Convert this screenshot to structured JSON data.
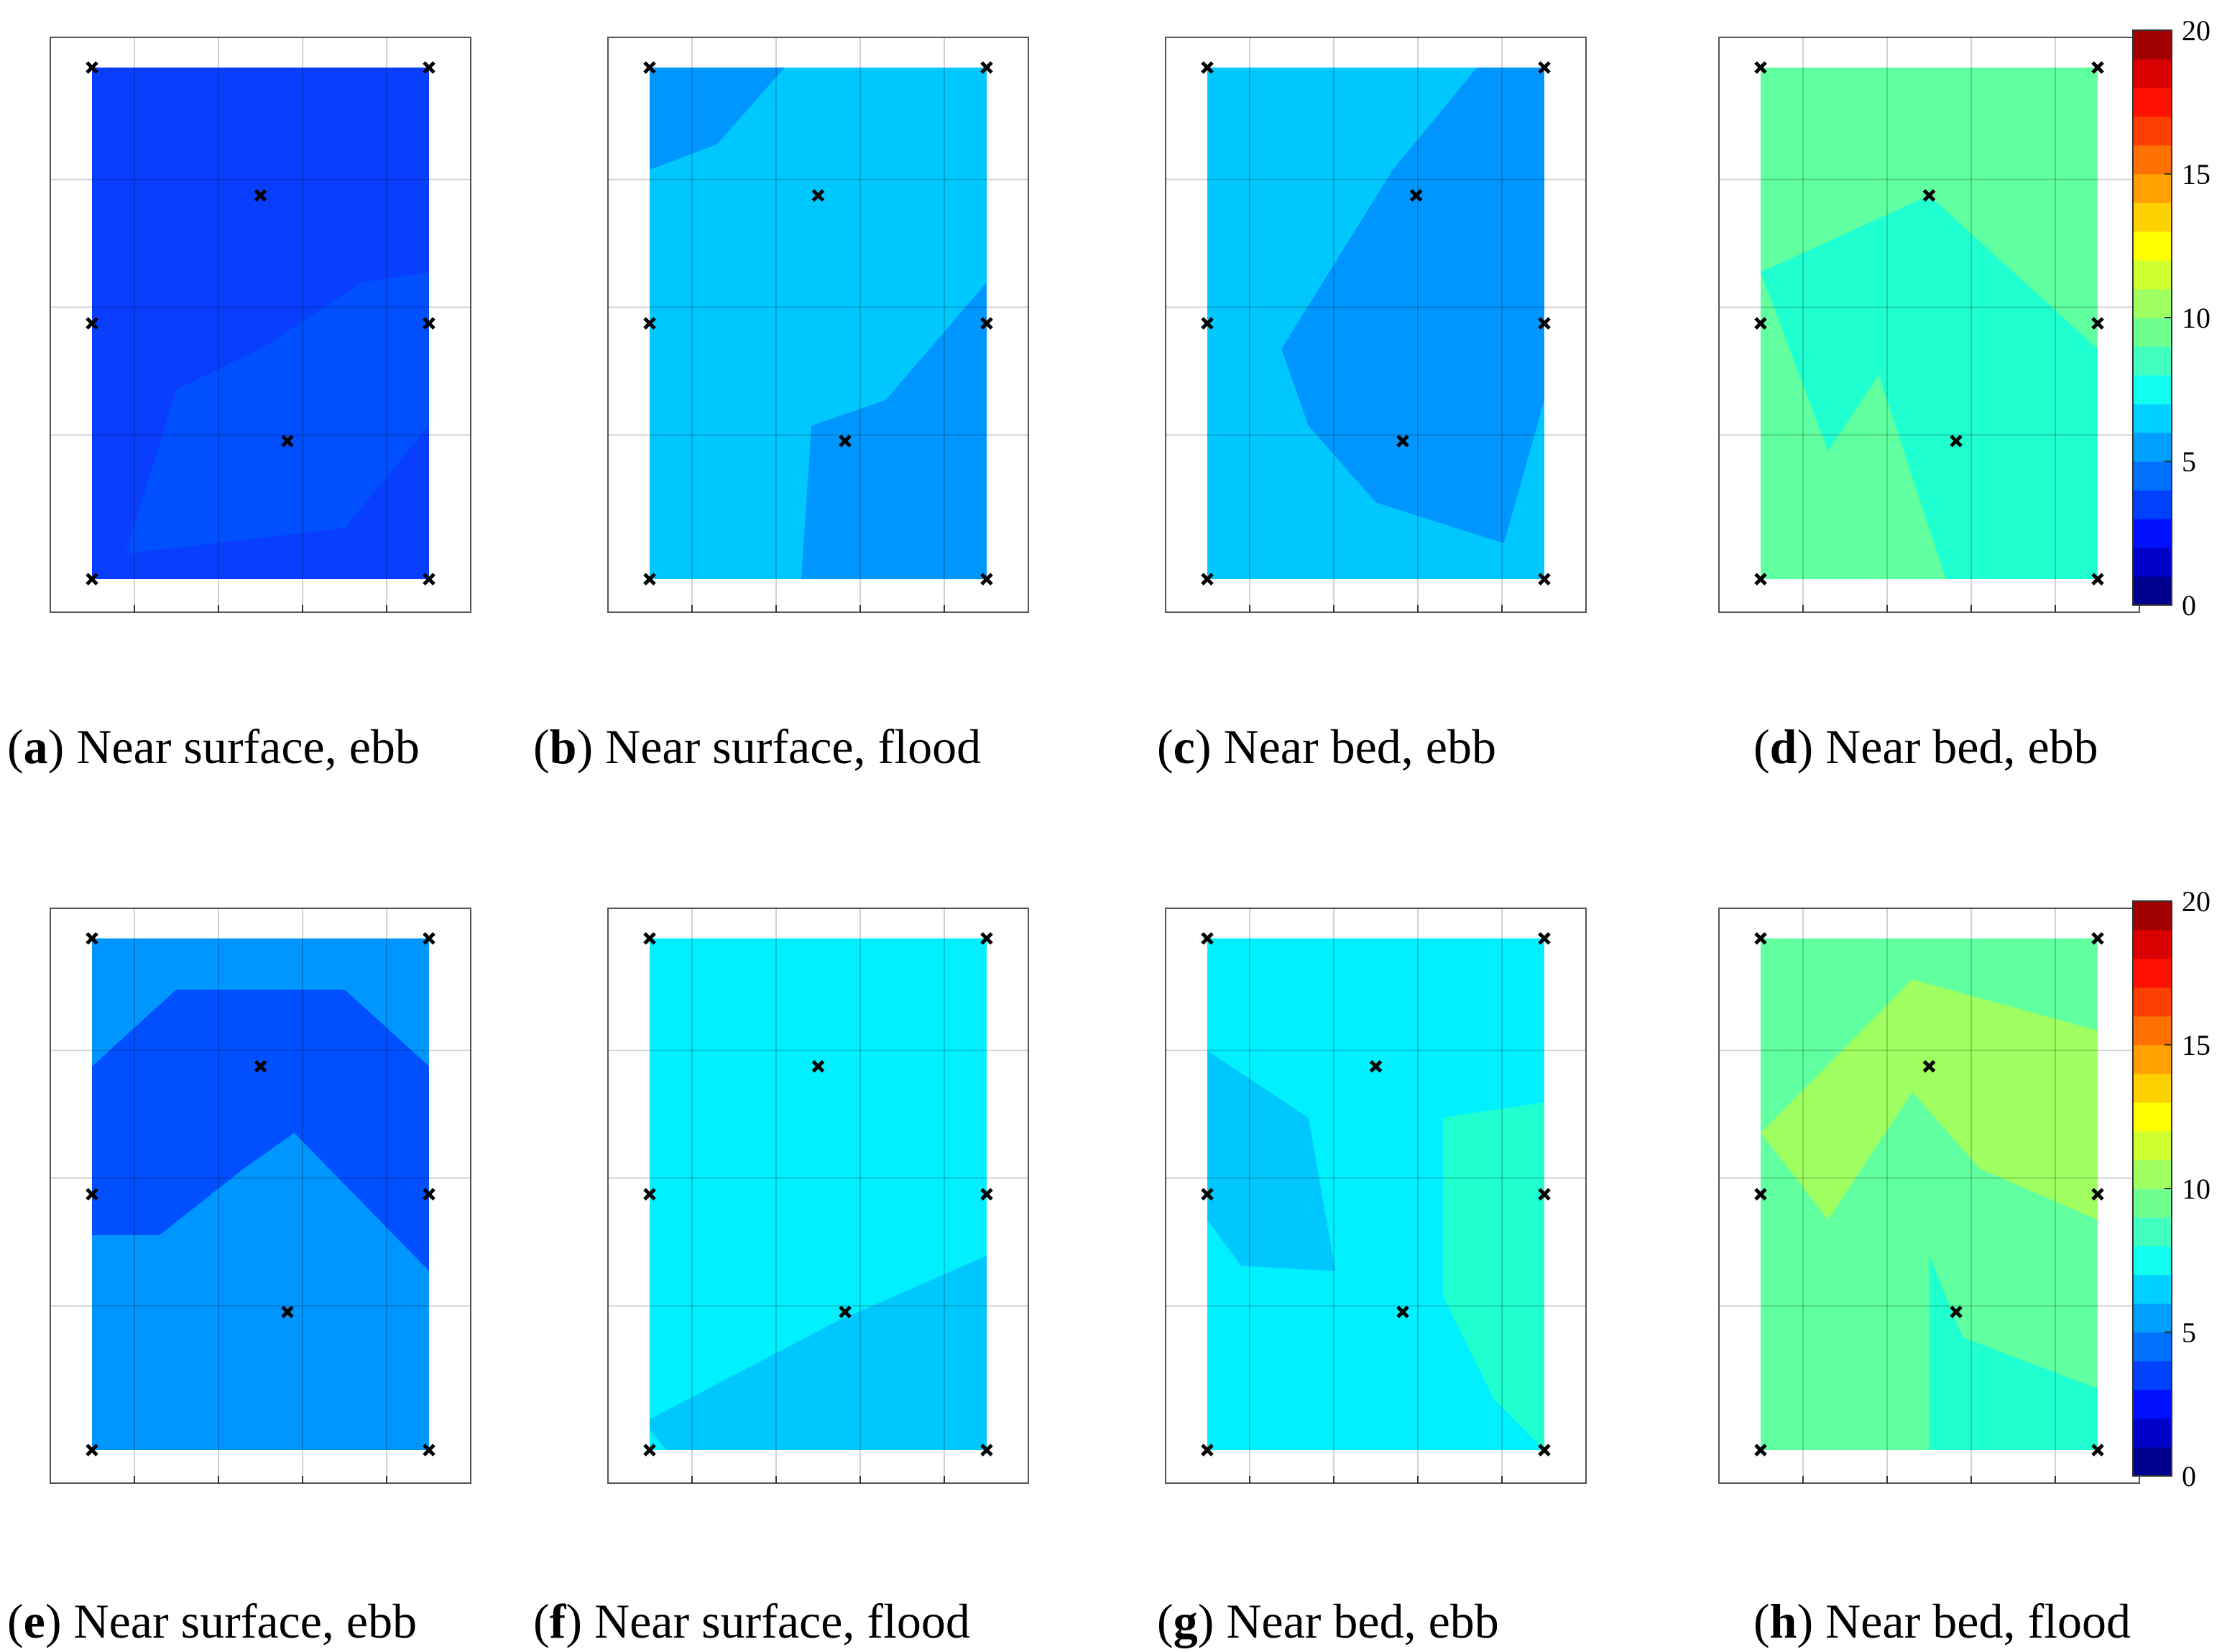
{
  "chart_data": [
    {
      "type": "heatmap",
      "letter": "a",
      "caption": "Near surface, ebb",
      "row": 0,
      "col": 0,
      "colors": [
        "#0a3eff",
        "#0050ff"
      ],
      "contour": [
        [
          0.1,
          0.05
        ],
        [
          0.75,
          0.1
        ],
        [
          1,
          0.3
        ],
        [
          1,
          0.6
        ],
        [
          0.8,
          0.58
        ],
        [
          0.5,
          0.45
        ],
        [
          0.25,
          0.37
        ]
      ],
      "markers": [
        [
          0,
          1
        ],
        [
          1,
          1
        ],
        [
          0.5,
          0.75
        ],
        [
          0,
          0.5
        ],
        [
          1,
          0.5
        ],
        [
          0.58,
          0.27
        ],
        [
          0,
          0
        ],
        [
          1,
          0
        ]
      ]
    },
    {
      "type": "heatmap",
      "letter": "b",
      "caption": "Near surface, flood",
      "row": 0,
      "col": 1,
      "colors": [
        "#00c8ff",
        "#0096ff"
      ],
      "contour": [
        [
          0,
          0.8
        ],
        [
          0,
          1
        ],
        [
          0.4,
          1
        ],
        [
          0.2,
          0.85
        ],
        [
          0,
          0.8
        ]
      ],
      "contour2": [
        [
          0.45,
          0
        ],
        [
          1,
          0
        ],
        [
          1,
          0.58
        ],
        [
          0.7,
          0.35
        ],
        [
          0.48,
          0.3
        ]
      ],
      "markers": [
        [
          0,
          1
        ],
        [
          1,
          1
        ],
        [
          0.5,
          0.75
        ],
        [
          0,
          0.5
        ],
        [
          1,
          0.5
        ],
        [
          0.58,
          0.27
        ],
        [
          0,
          0
        ],
        [
          1,
          0
        ]
      ]
    },
    {
      "type": "heatmap",
      "letter": "c",
      "caption": "Near bed, ebb",
      "row": 0,
      "col": 2,
      "colors": [
        "#00c8ff",
        "#0096ff",
        "#00f0ff"
      ],
      "contour": [
        [
          0.22,
          0.45
        ],
        [
          0.55,
          0.8
        ],
        [
          0.8,
          1
        ],
        [
          1,
          1
        ],
        [
          1,
          0.35
        ],
        [
          0.88,
          0.07
        ],
        [
          0.5,
          0.15
        ],
        [
          0.3,
          0.3
        ]
      ],
      "markers": [
        [
          0,
          1
        ],
        [
          1,
          1
        ],
        [
          0.62,
          0.75
        ],
        [
          0,
          0.5
        ],
        [
          1,
          0.5
        ],
        [
          0.58,
          0.27
        ],
        [
          0,
          0
        ],
        [
          1,
          0
        ]
      ]
    },
    {
      "type": "heatmap",
      "letter": "d",
      "caption": "Near bed, ebb",
      "row": 0,
      "col": 3,
      "colors": [
        "#60ffa0",
        "#20ffd0",
        "#00f0ff"
      ],
      "contour": [
        [
          0,
          0.6
        ],
        [
          0.5,
          0.75
        ],
        [
          1,
          0.45
        ],
        [
          1,
          0
        ],
        [
          0.55,
          0
        ],
        [
          0.35,
          0.4
        ],
        [
          0.2,
          0.25
        ]
      ],
      "markers": [
        [
          0,
          1
        ],
        [
          1,
          1
        ],
        [
          0.5,
          0.75
        ],
        [
          0,
          0.5
        ],
        [
          1,
          0.5
        ],
        [
          0.58,
          0.27
        ],
        [
          0,
          0
        ],
        [
          1,
          0
        ]
      ]
    },
    {
      "type": "heatmap",
      "letter": "e",
      "caption": "Near surface, ebb",
      "row": 1,
      "col": 0,
      "colors": [
        "#0096ff",
        "#0050ff",
        "#00f0ff"
      ],
      "contour": [
        [
          0,
          0.75
        ],
        [
          0.25,
          0.9
        ],
        [
          0.75,
          0.9
        ],
        [
          1,
          0.75
        ],
        [
          1,
          0.35
        ],
        [
          0.6,
          0.62
        ],
        [
          0.45,
          0.55
        ],
        [
          0.2,
          0.42
        ],
        [
          0,
          0.42
        ]
      ],
      "markers": [
        [
          0,
          1
        ],
        [
          1,
          1
        ],
        [
          0.5,
          0.75
        ],
        [
          0,
          0.5
        ],
        [
          1,
          0.5
        ],
        [
          0.58,
          0.27
        ],
        [
          0,
          0
        ],
        [
          1,
          0
        ]
      ]
    },
    {
      "type": "heatmap",
      "letter": "f",
      "caption": "Near surface, flood",
      "row": 1,
      "col": 1,
      "colors": [
        "#00f0ff",
        "#00c8ff"
      ],
      "contour": [
        [
          0,
          0.04
        ],
        [
          0,
          0.06
        ],
        [
          0.55,
          0.25
        ],
        [
          1,
          0.38
        ],
        [
          1,
          0
        ],
        [
          0.05,
          0
        ]
      ],
      "markers": [
        [
          0,
          1
        ],
        [
          1,
          1
        ],
        [
          0.5,
          0.75
        ],
        [
          0,
          0.5
        ],
        [
          1,
          0.5
        ],
        [
          0.58,
          0.27
        ],
        [
          0,
          0
        ],
        [
          1,
          0
        ]
      ]
    },
    {
      "type": "heatmap",
      "letter": "g",
      "caption": "Near bed, ebb",
      "row": 1,
      "col": 2,
      "colors": [
        "#00f0ff",
        "#00c8ff",
        "#20ffd0"
      ],
      "contour": [
        [
          0,
          0.78
        ],
        [
          0.3,
          0.65
        ],
        [
          0.38,
          0.35
        ],
        [
          0.1,
          0.36
        ],
        [
          0,
          0.45
        ]
      ],
      "contour2": [
        [
          0.7,
          0.65
        ],
        [
          1,
          0.68
        ],
        [
          1,
          0
        ],
        [
          0.85,
          0.1
        ],
        [
          0.7,
          0.3
        ]
      ],
      "markers": [
        [
          0,
          1
        ],
        [
          1,
          1
        ],
        [
          0.5,
          0.75
        ],
        [
          0,
          0.5
        ],
        [
          1,
          0.5
        ],
        [
          0.58,
          0.27
        ],
        [
          0,
          0
        ],
        [
          1,
          0
        ]
      ]
    },
    {
      "type": "heatmap",
      "letter": "h",
      "caption": "Near bed, flood",
      "row": 1,
      "col": 3,
      "colors": [
        "#60ffa0",
        "#a0ff60",
        "#20ffd0"
      ],
      "contour": [
        [
          0,
          0.62
        ],
        [
          0.45,
          0.92
        ],
        [
          1,
          0.82
        ],
        [
          1,
          0.45
        ],
        [
          0.65,
          0.55
        ],
        [
          0.45,
          0.7
        ],
        [
          0.2,
          0.45
        ]
      ],
      "contour2": [
        [
          0.5,
          0
        ],
        [
          1,
          0
        ],
        [
          1,
          0.12
        ],
        [
          0.6,
          0.22
        ],
        [
          0.5,
          0.38
        ]
      ],
      "markers": [
        [
          0,
          1
        ],
        [
          1,
          1
        ],
        [
          0.5,
          0.75
        ],
        [
          0,
          0.5
        ],
        [
          1,
          0.5
        ],
        [
          0.58,
          0.27
        ],
        [
          0,
          0
        ],
        [
          1,
          0
        ]
      ]
    }
  ],
  "colorbar": {
    "ticks": [
      "0",
      "5",
      "10",
      "15",
      "20"
    ],
    "colors": [
      "#00008f",
      "#0000c8",
      "#0010ff",
      "#0040ff",
      "#0070ff",
      "#00a0ff",
      "#00d0ff",
      "#10ffef",
      "#40ffbf",
      "#70ff8f",
      "#a0ff60",
      "#d0ff30",
      "#ffff00",
      "#ffd000",
      "#ffa000",
      "#ff7000",
      "#ff4000",
      "#ff1000",
      "#d80000",
      "#a00000"
    ]
  }
}
